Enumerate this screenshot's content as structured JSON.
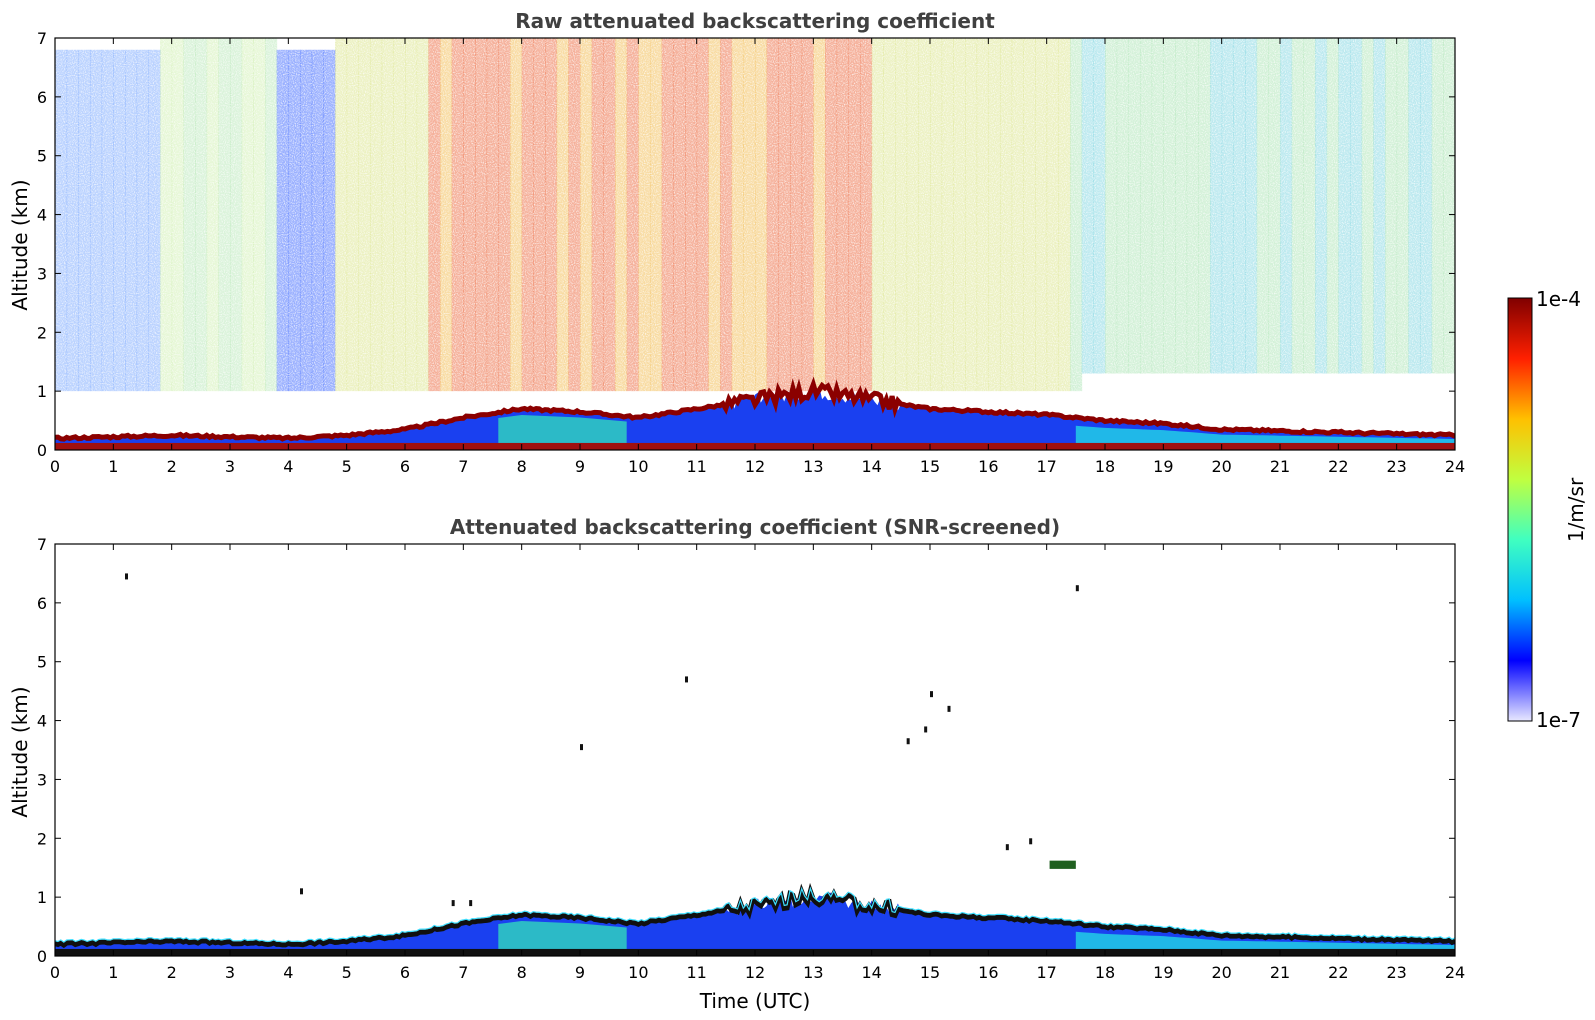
{
  "chart_data": [
    {
      "type": "heatmap",
      "title": "Raw attenuated backscattering coefficient",
      "xlabel": "",
      "ylabel": "Altitude (km)",
      "xlim": [
        0,
        24
      ],
      "ylim": [
        0,
        7
      ],
      "xticks": [
        "0",
        "1",
        "2",
        "3",
        "4",
        "5",
        "6",
        "7",
        "8",
        "9",
        "10",
        "11",
        "12",
        "13",
        "14",
        "15",
        "16",
        "17",
        "18",
        "19",
        "20",
        "21",
        "22",
        "23",
        "24"
      ],
      "yticks": [
        "0",
        "1",
        "2",
        "3",
        "4",
        "5",
        "6",
        "7"
      ],
      "grid": false,
      "mode": "raw",
      "boundary_layer_top_km": [
        [
          0,
          0.2
        ],
        [
          2,
          0.25
        ],
        [
          4,
          0.2
        ],
        [
          5,
          0.25
        ],
        [
          6,
          0.35
        ],
        [
          7,
          0.55
        ],
        [
          8,
          0.7
        ],
        [
          9,
          0.65
        ],
        [
          10,
          0.55
        ],
        [
          11,
          0.7
        ],
        [
          12,
          0.85
        ],
        [
          13,
          1.0
        ],
        [
          14,
          0.85
        ],
        [
          15,
          0.7
        ],
        [
          16,
          0.65
        ],
        [
          17,
          0.6
        ],
        [
          18,
          0.5
        ],
        [
          19,
          0.45
        ],
        [
          20,
          0.35
        ],
        [
          22,
          0.3
        ],
        [
          24,
          0.25
        ]
      ]
    },
    {
      "type": "heatmap",
      "title": "Attenuated backscattering coefficient (SNR-screened)",
      "xlabel": "Time (UTC)",
      "ylabel": "Altitude (km)",
      "xlim": [
        0,
        24
      ],
      "ylim": [
        0,
        7
      ],
      "xticks": [
        "0",
        "1",
        "2",
        "3",
        "4",
        "5",
        "6",
        "7",
        "8",
        "9",
        "10",
        "11",
        "12",
        "13",
        "14",
        "15",
        "16",
        "17",
        "18",
        "19",
        "20",
        "21",
        "22",
        "23",
        "24"
      ],
      "yticks": [
        "0",
        "1",
        "2",
        "3",
        "4",
        "5",
        "6",
        "7"
      ],
      "grid": false,
      "mode": "screened",
      "boundary_layer_top_km": [
        [
          0,
          0.2
        ],
        [
          2,
          0.25
        ],
        [
          4,
          0.2
        ],
        [
          5,
          0.25
        ],
        [
          6,
          0.35
        ],
        [
          7,
          0.55
        ],
        [
          8,
          0.7
        ],
        [
          9,
          0.65
        ],
        [
          10,
          0.55
        ],
        [
          11,
          0.7
        ],
        [
          12,
          0.85
        ],
        [
          13,
          1.0
        ],
        [
          14,
          0.85
        ],
        [
          15,
          0.7
        ],
        [
          16,
          0.65
        ],
        [
          17,
          0.6
        ],
        [
          18,
          0.5
        ],
        [
          19,
          0.45
        ],
        [
          20,
          0.35
        ],
        [
          22,
          0.3
        ],
        [
          24,
          0.25
        ]
      ]
    }
  ],
  "colorbar": {
    "max_label": "1e-4",
    "min_label": "1e-7",
    "unit": "1/m/sr",
    "colormap": "jet",
    "colors": [
      "#e8e8ff",
      "#0000ff",
      "#00c0ff",
      "#40ffc0",
      "#c0ff40",
      "#ffc000",
      "#ff2000",
      "#800000"
    ]
  }
}
